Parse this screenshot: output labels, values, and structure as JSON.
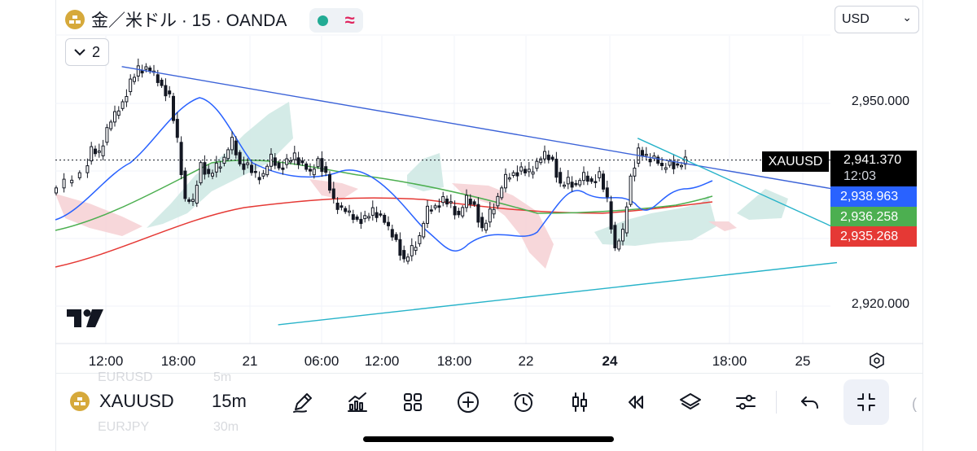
{
  "header": {
    "title": "金／米ドル · 15 · OANDA",
    "status_approx": "≈",
    "collapse_count": "2",
    "currency": "USD",
    "currency_chevron": "⌄"
  },
  "price_axis": {
    "labels": [
      "2,950.000",
      "2,920.000"
    ],
    "current": {
      "symbol": "XAUUSD",
      "price": "2,941.370",
      "countdown": "12:03",
      "color": "#000000"
    },
    "ma_labels": [
      {
        "value": "2,938.963",
        "color": "#2962ff"
      },
      {
        "value": "2,936.258",
        "color": "#4caf50"
      },
      {
        "value": "2,935.268",
        "color": "#e53935"
      }
    ]
  },
  "time_axis": {
    "labels": [
      "12:00",
      "18:00",
      "21",
      "06:00",
      "12:00",
      "18:00",
      "22",
      "24",
      "18:00",
      "25"
    ]
  },
  "toolbar": {
    "symbol": "XAUUSD",
    "interval": "15m",
    "ghost_top": [
      "EURUSD",
      "5m"
    ],
    "ghost_bottom": [
      "EURJPY",
      "30m"
    ]
  },
  "chart_data": {
    "type": "candlestick",
    "symbol": "XAUUSD",
    "interval": "15m",
    "ylim": [
      2914,
      2958
    ],
    "y_ticks": [
      2950,
      2920
    ],
    "x_ticks": [
      "12:00",
      "18:00",
      "21",
      "06:00",
      "12:00",
      "18:00",
      "22",
      "24",
      "18:00",
      "25"
    ],
    "path_points": [
      [
        0,
        2936.5
      ],
      [
        4,
        2938
      ],
      [
        8,
        2939.5
      ],
      [
        10,
        2943
      ],
      [
        12,
        2942
      ],
      [
        14,
        2946
      ],
      [
        16,
        2948
      ],
      [
        18,
        2950
      ],
      [
        20,
        2953
      ],
      [
        22,
        2954.6
      ],
      [
        24,
        2955
      ],
      [
        26,
        2954
      ],
      [
        28,
        2952.4
      ],
      [
        30,
        2950.8
      ],
      [
        32,
        2944
      ],
      [
        34,
        2935.5
      ],
      [
        36,
        2935
      ],
      [
        38,
        2941
      ],
      [
        40,
        2939
      ],
      [
        42,
        2940.2
      ],
      [
        44,
        2941.6
      ],
      [
        46,
        2944.2
      ],
      [
        48,
        2940.8
      ],
      [
        50,
        2940.6
      ],
      [
        52,
        2938.8
      ],
      [
        54,
        2939.2
      ],
      [
        56,
        2941.7
      ],
      [
        58,
        2940.2
      ],
      [
        60,
        2941.2
      ],
      [
        62,
        2941.7
      ],
      [
        64,
        2940.8
      ],
      [
        66,
        2939.2
      ],
      [
        68,
        2941.6
      ],
      [
        70,
        2939.2
      ],
      [
        72,
        2935
      ],
      [
        74,
        2934.2
      ],
      [
        76,
        2933.3
      ],
      [
        78,
        2932.6
      ],
      [
        80,
        2932.8
      ],
      [
        82,
        2933.6
      ],
      [
        84,
        2933.2
      ],
      [
        86,
        2931.1
      ],
      [
        88,
        2929.6
      ],
      [
        90,
        2926.4
      ],
      [
        92,
        2928
      ],
      [
        94,
        2930
      ],
      [
        96,
        2934
      ],
      [
        98,
        2934.6
      ],
      [
        100,
        2935.6
      ],
      [
        102,
        2934.5
      ],
      [
        104,
        2933.1
      ],
      [
        106,
        2935.6
      ],
      [
        108,
        2934.8
      ],
      [
        110,
        2931
      ],
      [
        112,
        2933.4
      ],
      [
        114,
        2935.8
      ],
      [
        116,
        2938.7
      ],
      [
        118,
        2939.5
      ],
      [
        120,
        2940
      ],
      [
        122,
        2939.3
      ],
      [
        124,
        2941
      ],
      [
        126,
        2942.1
      ],
      [
        128,
        2941.5
      ],
      [
        130,
        2937.6
      ],
      [
        132,
        2938.1
      ],
      [
        134,
        2937.7
      ],
      [
        136,
        2939
      ],
      [
        138,
        2938.2
      ],
      [
        140,
        2939.3
      ],
      [
        142,
        2935.2
      ],
      [
        144,
        2928.2
      ],
      [
        146,
        2930.6
      ],
      [
        148,
        2939
      ],
      [
        150,
        2942.8
      ],
      [
        152,
        2941.5
      ],
      [
        154,
        2941.8
      ],
      [
        156,
        2940
      ],
      [
        158,
        2941.2
      ],
      [
        160,
        2940.4
      ],
      [
        162,
        2941.1
      ]
    ],
    "trendlines": [
      {
        "color": "#3c63d8",
        "from": [
          17,
          2955.2
        ],
        "to": [
          200,
          2937
        ]
      },
      {
        "color": "#27b3c9",
        "from": [
          57,
          2917
        ],
        "to": [
          200,
          2926.2
        ]
      },
      {
        "color": "#27b3c9",
        "from": [
          149,
          2944.6
        ],
        "to": [
          200,
          2931.2
        ]
      }
    ],
    "moving_averages": [
      {
        "color": "#2962ff",
        "value": 2938.963
      },
      {
        "color": "#4caf50",
        "value": 2936.258
      },
      {
        "color": "#e53935",
        "value": 2935.268
      }
    ],
    "last_price": 2941.37
  }
}
